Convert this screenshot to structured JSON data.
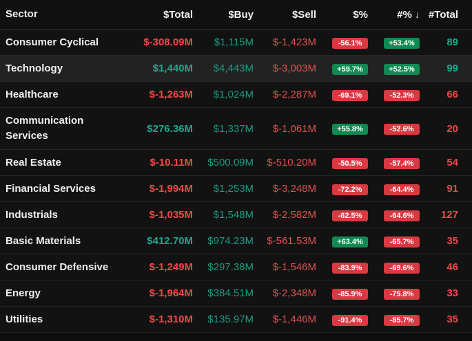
{
  "header": {
    "sector": "Sector",
    "total": "$Total",
    "buy": "$Buy",
    "sell": "$Sell",
    "pct": "$%",
    "count_pct": "#%",
    "sort_arrow": "↓",
    "count_total": "#Total"
  },
  "rows": [
    {
      "sector": "Consumer Cyclical",
      "total": "$-308.09M",
      "buy": "$1,115M",
      "sell": "$-1,423M",
      "pct": "-56.1%",
      "count_pct": "+53.4%",
      "count_total": "89"
    },
    {
      "sector": "Technology",
      "total": "$1,440M",
      "buy": "$4,443M",
      "sell": "$-3,003M",
      "pct": "+59.7%",
      "count_pct": "+52.5%",
      "count_total": "99"
    },
    {
      "sector": "Healthcare",
      "total": "$-1,263M",
      "buy": "$1,024M",
      "sell": "$-2,287M",
      "pct": "-69.1%",
      "count_pct": "-52.3%",
      "count_total": "66"
    },
    {
      "sector": "Communication Services",
      "total": "$276.36M",
      "buy": "$1,337M",
      "sell": "$-1,061M",
      "pct": "+55.8%",
      "count_pct": "-52.6%",
      "count_total": "20"
    },
    {
      "sector": "Real Estate",
      "total": "$-10.11M",
      "buy": "$500.09M",
      "sell": "$-510.20M",
      "pct": "-50.5%",
      "count_pct": "-57.4%",
      "count_total": "54"
    },
    {
      "sector": "Financial Services",
      "total": "$-1,994M",
      "buy": "$1,253M",
      "sell": "$-3,248M",
      "pct": "-72.2%",
      "count_pct": "-64.4%",
      "count_total": "91"
    },
    {
      "sector": "Industrials",
      "total": "$-1,035M",
      "buy": "$1,548M",
      "sell": "$-2,582M",
      "pct": "-62.5%",
      "count_pct": "-64.6%",
      "count_total": "127"
    },
    {
      "sector": "Basic Materials",
      "total": "$412.70M",
      "buy": "$974.23M",
      "sell": "$-561.53M",
      "pct": "+63.4%",
      "count_pct": "-65.7%",
      "count_total": "35"
    },
    {
      "sector": "Consumer Defensive",
      "total": "$-1,249M",
      "buy": "$297.38M",
      "sell": "$-1,546M",
      "pct": "-83.9%",
      "count_pct": "-69.6%",
      "count_total": "46"
    },
    {
      "sector": "Energy",
      "total": "$-1,964M",
      "buy": "$384.51M",
      "sell": "$-2,348M",
      "pct": "-85.9%",
      "count_pct": "-75.8%",
      "count_total": "33"
    },
    {
      "sector": "Utilities",
      "total": "$-1,310M",
      "buy": "$135.97M",
      "sell": "$-1,446M",
      "pct": "-91.4%",
      "count_pct": "-85.7%",
      "count_total": "35"
    }
  ],
  "colors": {
    "positive": "#1fa88a",
    "negative": "#ef4a4a",
    "badge_green": "#108a52",
    "badge_red": "#d93a42",
    "highlight_row": "#222222"
  }
}
